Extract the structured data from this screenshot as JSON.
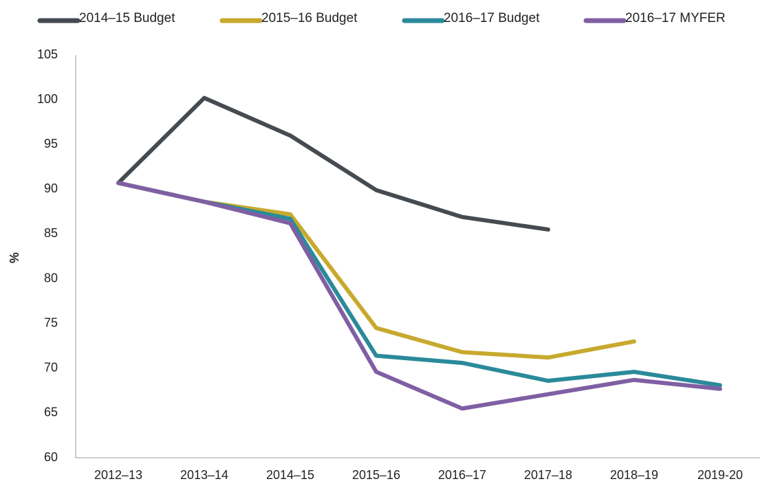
{
  "chart_data": {
    "type": "line",
    "y_label": "%",
    "categories": [
      "2012–13",
      "2013–14",
      "2014–15",
      "2015–16",
      "2016–17",
      "2017–18",
      "2018–19",
      "2019-20"
    ],
    "series": [
      {
        "name": "2014–15 Budget",
        "color": "#454b51",
        "values": [
          90.7,
          100.2,
          96.0,
          89.9,
          86.9,
          85.5,
          null,
          null
        ]
      },
      {
        "name": "2015–16 Budget",
        "color": "#c7a92e",
        "values": [
          90.7,
          88.6,
          87.2,
          74.5,
          71.8,
          71.2,
          73.0,
          null
        ]
      },
      {
        "name": "2016–17 Budget",
        "color": "#2a8a9a",
        "values": [
          90.7,
          88.6,
          86.7,
          71.4,
          70.6,
          68.6,
          69.6,
          68.1
        ]
      },
      {
        "name": "2016–17 MYFER",
        "color": "#7f5fa3",
        "values": [
          90.7,
          88.6,
          86.2,
          69.6,
          65.5,
          67.1,
          68.7,
          67.7
        ]
      }
    ],
    "ylim": [
      60,
      105
    ],
    "yticks": [
      60,
      65,
      70,
      75,
      80,
      85,
      90,
      95,
      100,
      105
    ],
    "grid": false,
    "legend": "top"
  }
}
